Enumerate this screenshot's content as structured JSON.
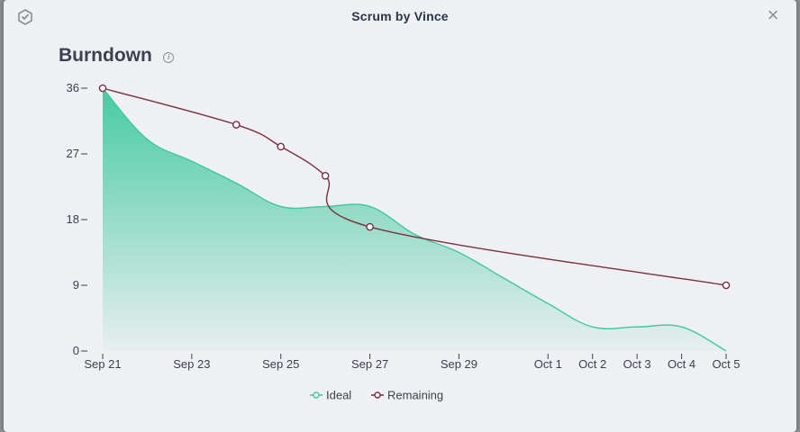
{
  "window": {
    "title": "Scrum by Vince"
  },
  "icons": {
    "logo": "app-logo-icon",
    "close": "close-icon",
    "info": "info-icon"
  },
  "colors": {
    "ideal": "#3ec99c",
    "remaining": "#7d2d3e"
  },
  "chart_data": {
    "type": "line",
    "title": "Burndown",
    "xlabel": "",
    "ylabel": "",
    "ylim": [
      0,
      36
    ],
    "yticks": [
      0,
      9,
      18,
      27,
      36
    ],
    "xticks": [
      {
        "label": "Sep 21",
        "day": 0
      },
      {
        "label": "Sep 23",
        "day": 2
      },
      {
        "label": "Sep 25",
        "day": 4
      },
      {
        "label": "Sep 27",
        "day": 6
      },
      {
        "label": "Sep 29",
        "day": 8
      },
      {
        "label": "Oct 1",
        "day": 10
      },
      {
        "label": "Oct 2",
        "day": 11
      },
      {
        "label": "Oct 3",
        "day": 12
      },
      {
        "label": "Oct 4",
        "day": 13
      },
      {
        "label": "Oct 5",
        "day": 14
      }
    ],
    "legend": {
      "position": "bottom-center"
    },
    "series": [
      {
        "name": "Ideal",
        "kind": "area",
        "points": [
          [
            0,
            36
          ],
          [
            1,
            29
          ],
          [
            2,
            26
          ],
          [
            3,
            23
          ],
          [
            4,
            19.8
          ],
          [
            5,
            19.8
          ],
          [
            6,
            19.8
          ],
          [
            7,
            16
          ],
          [
            8,
            13.5
          ],
          [
            9,
            10
          ],
          [
            10,
            6.5
          ],
          [
            11,
            3.3
          ],
          [
            12,
            3.3
          ],
          [
            13,
            3.3
          ],
          [
            14,
            0
          ]
        ]
      },
      {
        "name": "Remaining",
        "kind": "line",
        "points": [
          [
            0,
            36
          ],
          [
            3,
            31
          ],
          [
            4,
            28
          ],
          [
            5,
            24
          ],
          [
            6,
            17
          ],
          [
            14,
            9
          ]
        ]
      }
    ]
  }
}
